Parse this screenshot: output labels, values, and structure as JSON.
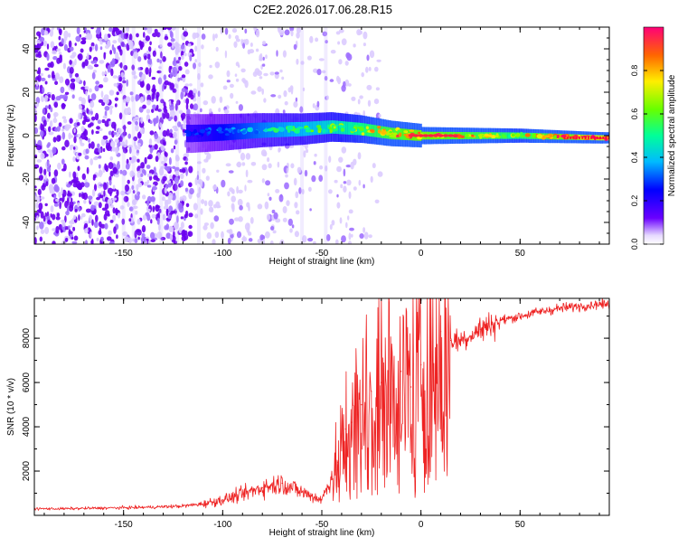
{
  "title": "C2E2.2026.017.06.28.R15",
  "chart_data": [
    {
      "type": "heatmap",
      "title": "C2E2.2026.017.06.28.R15",
      "xlabel": "Height of straight line (km)",
      "ylabel": "Frequency (Hz)",
      "xlim": [
        -195,
        95
      ],
      "ylim": [
        -50,
        50
      ],
      "xticks": [
        -150,
        -100,
        -50,
        0,
        50
      ],
      "yticks": [
        -40,
        -20,
        0,
        20,
        40
      ],
      "grid": false,
      "colorbar": {
        "label": "Normalized spectral amplitude",
        "range": [
          0.0,
          1.0
        ],
        "ticks": [
          "0.0",
          "0.2",
          "0.4",
          "0.6",
          "0.8"
        ],
        "colormap": [
          "#ffffff",
          "#6600ff",
          "#0000ff",
          "#00ccff",
          "#00ff66",
          "#ccff00",
          "#ff9900",
          "#ff0000",
          "#ff0066"
        ]
      },
      "description_data": {
        "noise_region_km": [
          -195,
          -115
        ],
        "tone_center_hz": [
          [
            -115,
            1
          ],
          [
            -100,
            1.5
          ],
          [
            -80,
            2.5
          ],
          [
            -60,
            3
          ],
          [
            -45,
            4
          ],
          [
            -30,
            3
          ],
          [
            -15,
            1
          ],
          [
            0,
            0
          ],
          [
            50,
            0
          ],
          [
            90,
            -1
          ]
        ],
        "tone_peak_amplitude": [
          [
            -115,
            0.25
          ],
          [
            -80,
            0.45
          ],
          [
            -50,
            0.55
          ],
          [
            -20,
            0.75
          ],
          [
            0,
            0.85
          ],
          [
            50,
            0.7
          ],
          [
            90,
            0.95
          ]
        ]
      }
    },
    {
      "type": "line",
      "xlabel": "Height of straight line (km)",
      "ylabel": "SNR (10 * v/v)",
      "xlim": [
        -195,
        95
      ],
      "ylim": [
        0,
        9800
      ],
      "xticks": [
        -150,
        -100,
        -50,
        0,
        50
      ],
      "yticks": [
        2000,
        4000,
        6000,
        8000
      ],
      "grid": false,
      "series": [
        {
          "name": "SNR",
          "color": "#ee2222",
          "x": [
            -195,
            -180,
            -160,
            -140,
            -120,
            -110,
            -100,
            -90,
            -80,
            -70,
            -60,
            -50,
            -42,
            -38,
            -35,
            -30,
            -25,
            -20,
            -15,
            -10,
            -5,
            0,
            5,
            10,
            15,
            20,
            30,
            40,
            50,
            60,
            70,
            80,
            90,
            95
          ],
          "values": [
            300,
            300,
            330,
            360,
            420,
            520,
            700,
            950,
            1250,
            1450,
            1050,
            700,
            2400,
            3900,
            4200,
            5000,
            5600,
            6000,
            6300,
            6500,
            5800,
            6800,
            7000,
            8300,
            7900,
            7900,
            8400,
            8800,
            9000,
            9200,
            9350,
            9450,
            9550,
            9500
          ]
        }
      ]
    }
  ]
}
